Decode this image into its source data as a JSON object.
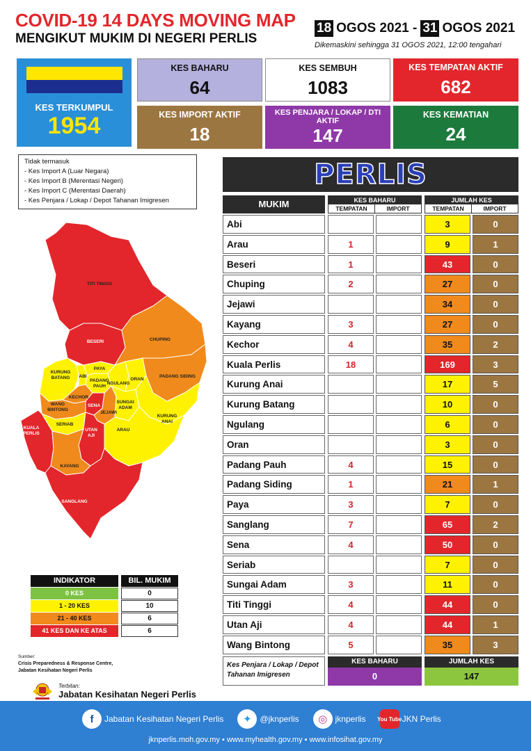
{
  "header": {
    "title": "COVID-19 14 DAYS MOVING MAP",
    "subtitle": "MENGIKUT MUKIM DI NEGERI PERLIS",
    "date_start_day": "18",
    "date_start_rest": "OGOS 2021 -",
    "date_end_day": "31",
    "date_end_rest": "OGOS 2021",
    "updated": "Dikemaskini sehingga 31 OGOS 2021, 12:00 tengahari"
  },
  "stats": {
    "kes_terkumpul": {
      "label": "KES TERKUMPUL",
      "value": "1954"
    },
    "kes_baharu": {
      "label": "KES BAHARU",
      "value": "64"
    },
    "kes_sembuh": {
      "label": "KES SEMBUH",
      "value": "1083"
    },
    "kes_tempatan_aktif": {
      "label": "KES TEMPATAN AKTIF",
      "value": "682"
    },
    "kes_import_aktif": {
      "label": "KES IMPORT AKTIF",
      "value": "18"
    },
    "kes_penjara": {
      "label": "KES PENJARA / LOKAP / DTI AKTIF",
      "value": "147"
    },
    "kes_kematian": {
      "label": "KES KEMATIAN",
      "value": "24"
    }
  },
  "exclusions": {
    "title": "Tidak termasuk",
    "items": [
      "- Kes Import A (Luar Negara)",
      "- Kes Import B (Merentasi Negeri)",
      "- Kes Import C (Merentasi Daerah)",
      "- Kes Penjara / Lokap / Depot Tahanan Imigresen"
    ]
  },
  "map_labels": {
    "titi_tinggi": "TITI TINGGI",
    "beseri": "BESERI",
    "chuping": "CHUPING",
    "paya": "PAYA",
    "kurung_batang_1": "KURUNG",
    "kurung_batang_2": "BATANG",
    "abi": "ABI",
    "padang_pauh_1": "PADANG",
    "padang_pauh_2": "PAUH",
    "ngulang": "NGULANG",
    "oran": "ORAN",
    "padang_siding": "PADANG SIDING",
    "kechor": "KECHOR",
    "sena": "SENA",
    "wang_bintong_1": "WANG",
    "wang_bintong_2": "BINTONG",
    "jejawi": "JEJAWI",
    "sungai_adam_1": "SUNGAI",
    "sungai_adam_2": "ADAM",
    "kurung_anai_1": "KURUNG",
    "kurung_anai_2": "ANAI",
    "seriab": "SERIAB",
    "arau": "ARAU",
    "kuala_perlis_1": "KUALA",
    "kuala_perlis_2": "PERLIS",
    "utan_aji_1": "UTAN",
    "utan_aji_2": "AJI",
    "kayang": "KAYANG",
    "sanglang": "SANGLANG"
  },
  "indicator": {
    "head": "INDIKATOR",
    "head2": "BIL. MUKIM",
    "rows": [
      {
        "label": "0 KES",
        "count": "0",
        "color": "#7dc242"
      },
      {
        "label": "1 - 20 KES",
        "count": "10",
        "color": "#fff200"
      },
      {
        "label": "21 - 40 KES",
        "count": "6",
        "color": "#f08a1c"
      },
      {
        "label": "41 KES DAN KE ATAS",
        "count": "6",
        "color": "#e3262b"
      }
    ]
  },
  "source": {
    "label": "Sumber:",
    "line1": "Crisis Preparedness & Response Centre,",
    "line2": "Jabatan Kesihatan Negeri Perlis"
  },
  "publisher": {
    "label": "Terbitan:",
    "name": "Jabatan Kesihatan Negeri Perlis"
  },
  "state_name": "PERLIS",
  "table": {
    "col_mukim": "MUKIM",
    "col_baharu": "KES BAHARU",
    "col_jumlah": "JUMLAH KES",
    "sub_tempatan": "TEMPATAN",
    "sub_import": "IMPORT",
    "rows": [
      {
        "mukim": "Abi",
        "baru_t": "",
        "baru_i": "",
        "jum_t": "3",
        "jum_i": "0",
        "level": "y"
      },
      {
        "mukim": "Arau",
        "baru_t": "1",
        "baru_i": "",
        "jum_t": "9",
        "jum_i": "1",
        "level": "y"
      },
      {
        "mukim": "Beseri",
        "baru_t": "1",
        "baru_i": "",
        "jum_t": "43",
        "jum_i": "0",
        "level": "r"
      },
      {
        "mukim": "Chuping",
        "baru_t": "2",
        "baru_i": "",
        "jum_t": "27",
        "jum_i": "0",
        "level": "o"
      },
      {
        "mukim": "Jejawi",
        "baru_t": "",
        "baru_i": "",
        "jum_t": "34",
        "jum_i": "0",
        "level": "o"
      },
      {
        "mukim": "Kayang",
        "baru_t": "3",
        "baru_i": "",
        "jum_t": "27",
        "jum_i": "0",
        "level": "o"
      },
      {
        "mukim": "Kechor",
        "baru_t": "4",
        "baru_i": "",
        "jum_t": "35",
        "jum_i": "2",
        "level": "o"
      },
      {
        "mukim": "Kuala Perlis",
        "baru_t": "18",
        "baru_i": "",
        "jum_t": "169",
        "jum_i": "3",
        "level": "r"
      },
      {
        "mukim": "Kurung Anai",
        "baru_t": "",
        "baru_i": "",
        "jum_t": "17",
        "jum_i": "5",
        "level": "y"
      },
      {
        "mukim": "Kurung Batang",
        "baru_t": "",
        "baru_i": "",
        "jum_t": "10",
        "jum_i": "0",
        "level": "y"
      },
      {
        "mukim": "Ngulang",
        "baru_t": "",
        "baru_i": "",
        "jum_t": "6",
        "jum_i": "0",
        "level": "y"
      },
      {
        "mukim": "Oran",
        "baru_t": "",
        "baru_i": "",
        "jum_t": "3",
        "jum_i": "0",
        "level": "y"
      },
      {
        "mukim": "Padang Pauh",
        "baru_t": "4",
        "baru_i": "",
        "jum_t": "15",
        "jum_i": "0",
        "level": "y"
      },
      {
        "mukim": "Padang Siding",
        "baru_t": "1",
        "baru_i": "",
        "jum_t": "21",
        "jum_i": "1",
        "level": "o"
      },
      {
        "mukim": "Paya",
        "baru_t": "3",
        "baru_i": "",
        "jum_t": "7",
        "jum_i": "0",
        "level": "y"
      },
      {
        "mukim": "Sanglang",
        "baru_t": "7",
        "baru_i": "",
        "jum_t": "65",
        "jum_i": "2",
        "level": "r"
      },
      {
        "mukim": "Sena",
        "baru_t": "4",
        "baru_i": "",
        "jum_t": "50",
        "jum_i": "0",
        "level": "r"
      },
      {
        "mukim": "Seriab",
        "baru_t": "",
        "baru_i": "",
        "jum_t": "7",
        "jum_i": "0",
        "level": "y"
      },
      {
        "mukim": "Sungai Adam",
        "baru_t": "3",
        "baru_i": "",
        "jum_t": "11",
        "jum_i": "0",
        "level": "y"
      },
      {
        "mukim": "Titi Tinggi",
        "baru_t": "4",
        "baru_i": "",
        "jum_t": "44",
        "jum_i": "0",
        "level": "r"
      },
      {
        "mukim": "Utan Aji",
        "baru_t": "4",
        "baru_i": "",
        "jum_t": "44",
        "jum_i": "1",
        "level": "r"
      },
      {
        "mukim": "Wang Bintong",
        "baru_t": "5",
        "baru_i": "",
        "jum_t": "35",
        "jum_i": "3",
        "level": "o"
      }
    ]
  },
  "penjara": {
    "label": "Kes Penjara / Lokap / Depot Tahanan Imigresen",
    "baru_head": "KES BAHARU",
    "baru_value": "0",
    "jumlah_head": "JUMLAH KES",
    "jumlah_value": "147"
  },
  "footer": {
    "facebook": "Jabatan Kesihatan Negeri Perlis",
    "twitter": "@jknperlis",
    "instagram": "jknperlis",
    "youtube": "JKN Perlis",
    "youtube_icon_text": "You Tube",
    "urls": "jknperlis.moh.gov.my  ▪ www.myhealth.gov.my  ▪ www.infosihat.gov.my"
  },
  "colors": {
    "red": "#e3262b",
    "orange": "#f08a1c",
    "yellow": "#fff200",
    "green": "#7dc242",
    "import_brown": "#9c7641",
    "purple": "#8f39a8"
  }
}
